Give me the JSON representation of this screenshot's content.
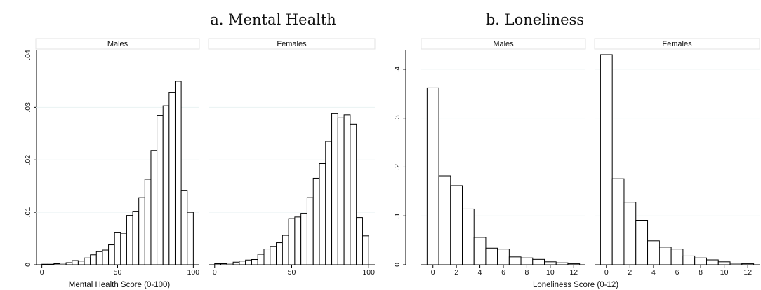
{
  "chart_data": [
    {
      "type": "bar",
      "title": "a. Mental Health",
      "xlabel": "Mental Health Score (0-100)",
      "ylabel": "",
      "xlim": [
        -4,
        104
      ],
      "ylim": [
        0,
        0.041
      ],
      "xticks": [
        "0",
        "50",
        "100"
      ],
      "yticks": [
        "0",
        ".01",
        ".02",
        ".03",
        ".04"
      ],
      "grid": true,
      "bin_width": 4,
      "panels": [
        {
          "name": "Males",
          "bin_starts": [
            0,
            4,
            8,
            12,
            16,
            20,
            24,
            28,
            32,
            36,
            40,
            44,
            48,
            52,
            56,
            60,
            64,
            68,
            72,
            76,
            80,
            84,
            88,
            92,
            96,
            100
          ],
          "values": [
            0.0001,
            0.0001,
            0.0002,
            0.0003,
            0.0004,
            0.0008,
            0.0007,
            0.0013,
            0.0019,
            0.0025,
            0.0028,
            0.0038,
            0.0062,
            0.006,
            0.0094,
            0.0102,
            0.0128,
            0.0163,
            0.0218,
            0.0285,
            0.0303,
            0.0328,
            0.035,
            0.0142,
            0.01,
            0.0
          ]
        },
        {
          "name": "Females",
          "bin_starts": [
            0,
            4,
            8,
            12,
            16,
            20,
            24,
            28,
            32,
            36,
            40,
            44,
            48,
            52,
            56,
            60,
            64,
            68,
            72,
            76,
            80,
            84,
            88,
            92,
            96,
            100
          ],
          "values": [
            0.0002,
            0.0002,
            0.0003,
            0.0005,
            0.0007,
            0.0009,
            0.001,
            0.002,
            0.003,
            0.0035,
            0.0042,
            0.0056,
            0.0088,
            0.0091,
            0.0098,
            0.0128,
            0.0165,
            0.0193,
            0.0235,
            0.0288,
            0.028,
            0.0286,
            0.0268,
            0.009,
            0.0055,
            0.0
          ]
        }
      ]
    },
    {
      "type": "bar",
      "title": "b. Loneliness",
      "xlabel": "Loneliness Score (0-12)",
      "ylabel": "",
      "xlim": [
        -1,
        13
      ],
      "ylim": [
        0,
        0.44
      ],
      "xticks": [
        "0",
        "2",
        "4",
        "6",
        "8",
        "10",
        "12"
      ],
      "yticks": [
        "0",
        ".1",
        ".2",
        ".3",
        ".4"
      ],
      "grid": true,
      "bin_width": 1,
      "panels": [
        {
          "name": "Males",
          "bin_starts": [
            0,
            1,
            2,
            3,
            4,
            5,
            6,
            7,
            8,
            9,
            10,
            11,
            12
          ],
          "values": [
            0.362,
            0.182,
            0.162,
            0.114,
            0.056,
            0.034,
            0.032,
            0.016,
            0.014,
            0.011,
            0.006,
            0.004,
            0.002
          ]
        },
        {
          "name": "Females",
          "bin_starts": [
            0,
            1,
            2,
            3,
            4,
            5,
            6,
            7,
            8,
            9,
            10,
            11,
            12
          ],
          "values": [
            0.43,
            0.176,
            0.128,
            0.091,
            0.049,
            0.036,
            0.032,
            0.018,
            0.014,
            0.01,
            0.006,
            0.003,
            0.002
          ]
        }
      ]
    }
  ]
}
